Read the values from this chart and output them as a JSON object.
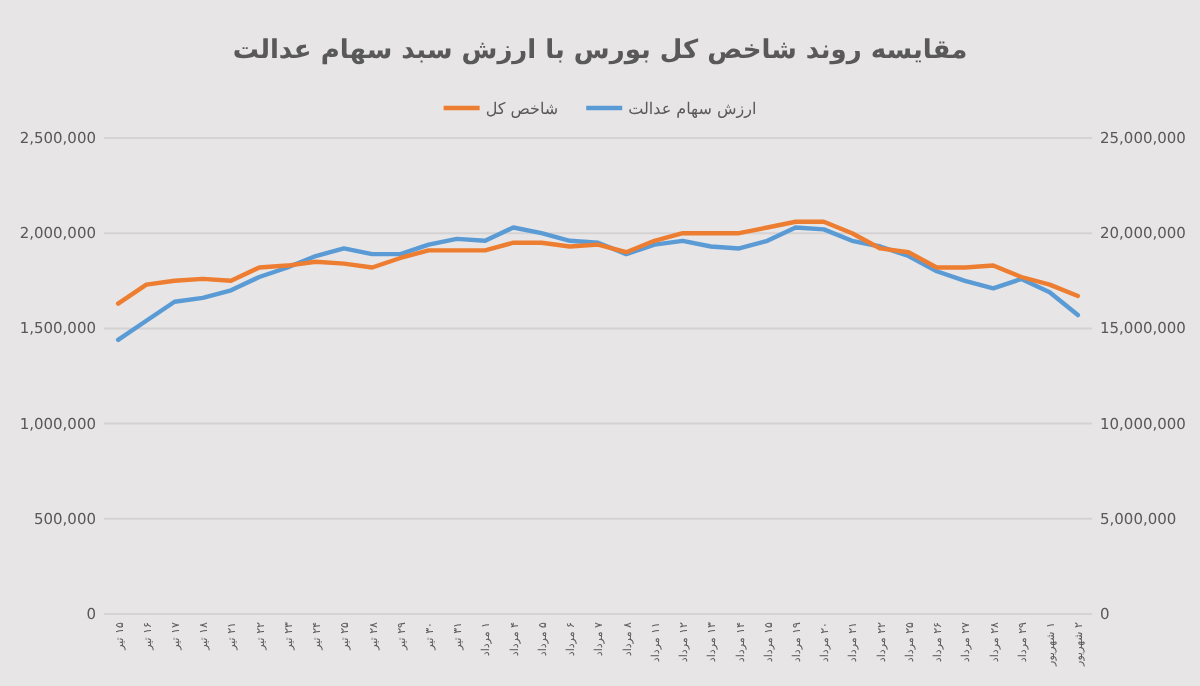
{
  "chart_data": {
    "type": "line",
    "title": "مقایسه روند شاخص کل بورس با ارزش سبد سهام عدالت",
    "categories": [
      "۱۵ تیر",
      "۱۶ تیر",
      "۱۷ تیر",
      "۱۸ تیر",
      "۲۱ تیر",
      "۲۲ تیر",
      "۲۳ تیر",
      "۲۴ تیر",
      "۲۵ تیر",
      "۲۸ تیر",
      "۲۹ تیر",
      "۳۰ تیر",
      "۳۱ تیر",
      "۱ مرداد",
      "۴ مرداد",
      "۵ مرداد",
      "۶ مرداد",
      "۷ مرداد",
      "۸ مرداد",
      "۱۱ مرداد",
      "۱۲ مرداد",
      "۱۳ مرداد",
      "۱۴ مرداد",
      "۱۵ مرداد",
      "۱۹ مرداد",
      "۲۰ مرداد",
      "۲۱ مرداد",
      "۲۲ مرداد",
      "۲۵ مرداد",
      "۲۶ مرداد",
      "۲۷ مرداد",
      "۲۸ مرداد",
      "۲۹ مرداد",
      "۱ شهریور",
      "۲ شهریور"
    ],
    "series": [
      {
        "name": "ارزش سهام عدالت",
        "color": "#5b9bd5",
        "axis": "y2",
        "values": [
          14400000,
          15400000,
          16400000,
          16600000,
          17000000,
          17700000,
          18200000,
          18800000,
          19200000,
          18900000,
          18900000,
          19400000,
          19700000,
          19600000,
          20300000,
          20000000,
          19600000,
          19500000,
          18900000,
          19400000,
          19600000,
          19300000,
          19200000,
          19600000,
          20300000,
          20200000,
          19600000,
          19300000,
          18800000,
          18000000,
          17500000,
          17100000,
          17600000,
          16900000,
          15700000
        ]
      },
      {
        "name": "شاخص کل",
        "color": "#ed7d31",
        "values": [
          1630000,
          1730000,
          1750000,
          1760000,
          1750000,
          1820000,
          1830000,
          1850000,
          1840000,
          1820000,
          1870000,
          1910000,
          1910000,
          1910000,
          1950000,
          1950000,
          1930000,
          1940000,
          1900000,
          1960000,
          2000000,
          2000000,
          2000000,
          2030000,
          2060000,
          2060000,
          2000000,
          1920000,
          1900000,
          1820000,
          1820000,
          1830000,
          1770000,
          1730000,
          1670000
        ]
      }
    ],
    "ylim": [
      0,
      2500000
    ],
    "yticks": [
      {
        "value": 0,
        "label": "0"
      },
      {
        "value": 500000,
        "label": "500,000"
      },
      {
        "value": 1000000,
        "label": "1,000,000"
      },
      {
        "value": 1500000,
        "label": "1,500,000"
      },
      {
        "value": 2000000,
        "label": "2,000,000"
      },
      {
        "value": 2500000,
        "label": "2,500,000"
      }
    ],
    "y2lim": [
      0,
      25000000
    ],
    "y2ticks": [
      {
        "value": 0,
        "label": "0"
      },
      {
        "value": 5000000,
        "label": "5,000,000"
      },
      {
        "value": 10000000,
        "label": "10,000,000"
      },
      {
        "value": 15000000,
        "label": "15,000,000"
      },
      {
        "value": 20000000,
        "label": "20,000,000"
      },
      {
        "value": 25000000,
        "label": "25,000,000"
      }
    ],
    "grid": "y",
    "legend": "top",
    "line_style": "solid"
  }
}
